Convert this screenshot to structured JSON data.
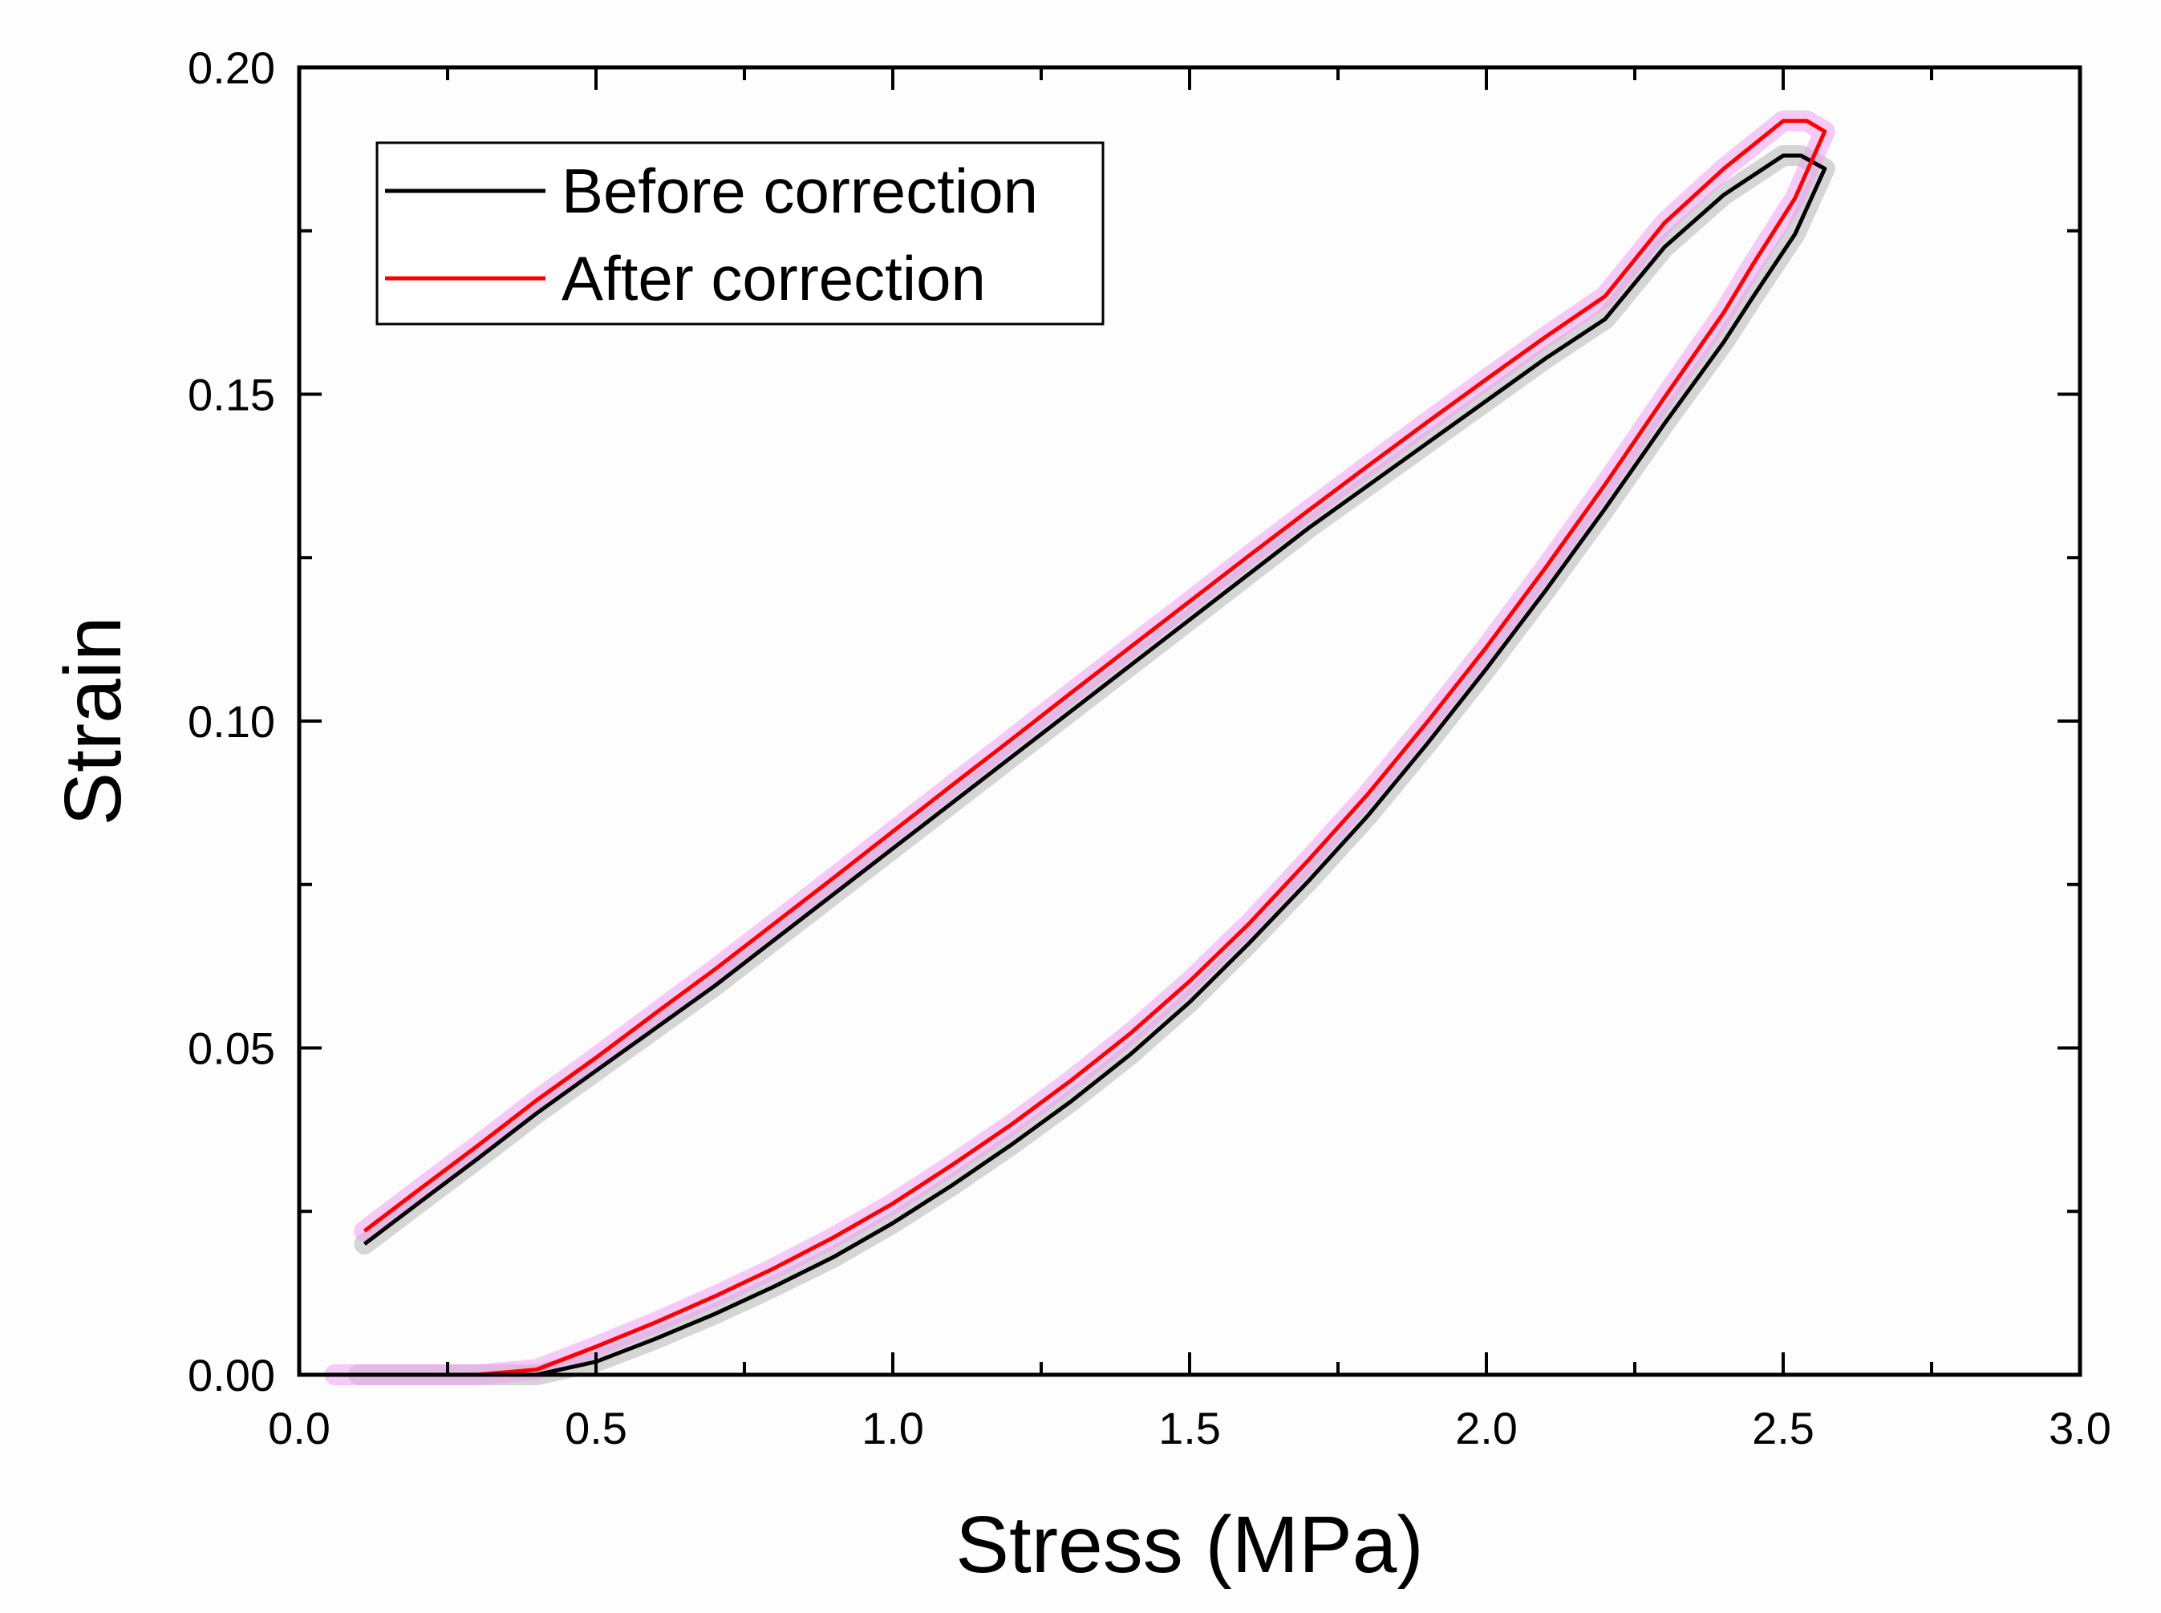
{
  "chart_data": {
    "type": "line",
    "title": "",
    "xlabel": "Stress (MPa)",
    "ylabel": "Strain",
    "xlim": [
      0,
      3.0
    ],
    "ylim": [
      0,
      0.2
    ],
    "xticks": [
      "0.0",
      "0.5",
      "1.0",
      "1.5",
      "2.0",
      "2.5",
      "3.0"
    ],
    "yticks": [
      "0.00",
      "0.05",
      "0.10",
      "0.15",
      "0.20"
    ],
    "legend_position": "top-left",
    "series": [
      {
        "name": "Before correction",
        "color": "#000000",
        "band_color": "#b4b4b4",
        "x": [
          0.11,
          0.2,
          0.3,
          0.4,
          0.5,
          0.6,
          0.7,
          0.8,
          0.9,
          1.0,
          1.1,
          1.2,
          1.3,
          1.4,
          1.5,
          1.6,
          1.7,
          1.8,
          1.9,
          2.0,
          2.1,
          2.2,
          2.3,
          2.4,
          2.5,
          2.53,
          2.57,
          2.52,
          2.45,
          2.4,
          2.3,
          2.2,
          2.1,
          2.0,
          1.9,
          1.8,
          1.7,
          1.6,
          1.5,
          1.4,
          1.3,
          1.2,
          1.1,
          1.0,
          0.9,
          0.8,
          0.7,
          0.6,
          0.5,
          0.4,
          0.3,
          0.2,
          0.14,
          0.1
        ],
        "y": [
          0.02,
          0.0262,
          0.033,
          0.04,
          0.0465,
          0.053,
          0.0595,
          0.0665,
          0.0735,
          0.0805,
          0.0875,
          0.0945,
          0.1015,
          0.1085,
          0.1155,
          0.1225,
          0.1295,
          0.136,
          0.1425,
          0.149,
          0.1555,
          0.1615,
          0.1725,
          0.1805,
          0.1865,
          0.1865,
          0.1845,
          0.1745,
          0.165,
          0.158,
          0.1455,
          0.1325,
          0.12,
          0.108,
          0.0965,
          0.0855,
          0.0755,
          0.066,
          0.057,
          0.049,
          0.0418,
          0.0352,
          0.029,
          0.0232,
          0.018,
          0.0135,
          0.0093,
          0.0055,
          0.002,
          -0.001,
          -0.004,
          -0.0065,
          -0.008,
          -0.009
        ]
      },
      {
        "name": "After correction",
        "color": "#ff0000",
        "band_color": "#f0a0f0",
        "x": [
          0.11,
          0.2,
          0.3,
          0.4,
          0.5,
          0.6,
          0.7,
          0.8,
          0.9,
          1.0,
          1.1,
          1.2,
          1.3,
          1.4,
          1.5,
          1.6,
          1.7,
          1.8,
          1.9,
          2.0,
          2.1,
          2.2,
          2.3,
          2.4,
          2.5,
          2.54,
          2.57,
          2.52,
          2.45,
          2.4,
          2.3,
          2.2,
          2.1,
          2.0,
          1.9,
          1.8,
          1.7,
          1.6,
          1.5,
          1.4,
          1.3,
          1.2,
          1.1,
          1.0,
          0.9,
          0.8,
          0.7,
          0.6,
          0.5,
          0.4,
          0.3,
          0.2,
          0.12,
          0.06
        ],
        "y": [
          0.022,
          0.0282,
          0.035,
          0.042,
          0.0485,
          0.0553,
          0.062,
          0.069,
          0.076,
          0.0831,
          0.0902,
          0.0972,
          0.1043,
          0.1113,
          0.1183,
          0.1253,
          0.1322,
          0.139,
          0.1457,
          0.1523,
          0.1588,
          0.165,
          0.1762,
          0.1845,
          0.1918,
          0.1918,
          0.1902,
          0.18,
          0.17,
          0.1625,
          0.1495,
          0.1362,
          0.1235,
          0.1113,
          0.0998,
          0.0888,
          0.0787,
          0.069,
          0.0602,
          0.0522,
          0.045,
          0.0383,
          0.0321,
          0.0262,
          0.021,
          0.0163,
          0.012,
          0.008,
          0.0043,
          0.0008,
          -0.0025,
          -0.0055,
          -0.0075,
          -0.0085
        ]
      }
    ]
  }
}
